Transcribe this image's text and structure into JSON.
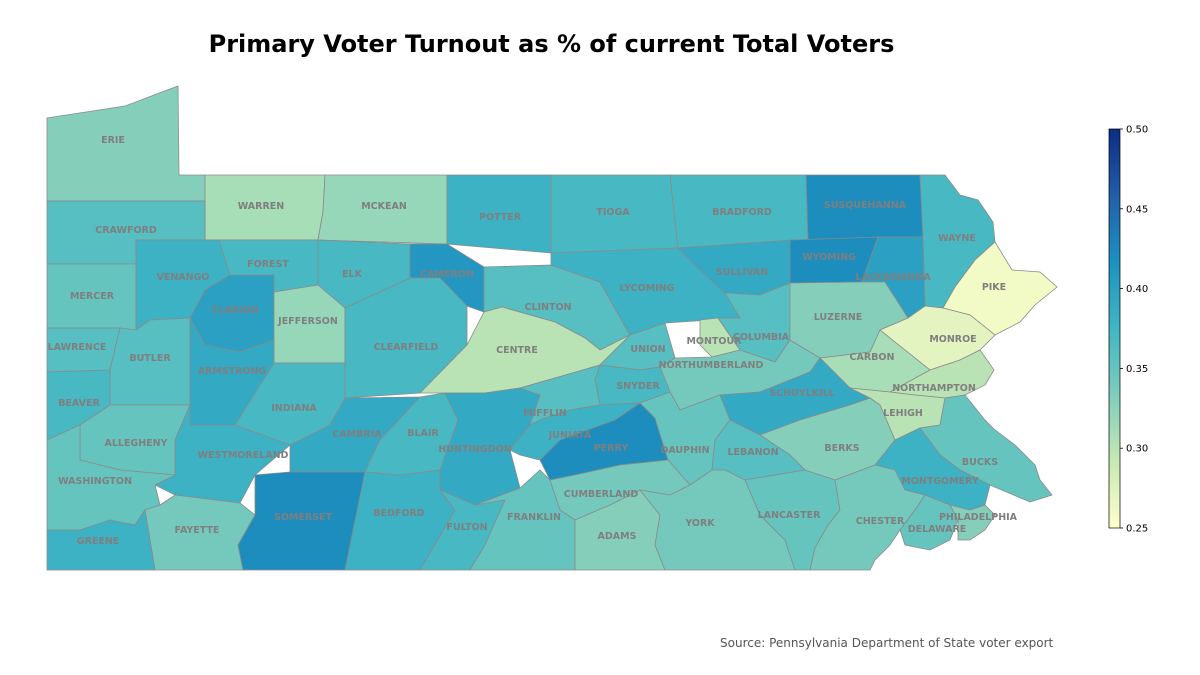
{
  "title": "Primary Voter Turnout as % of current Total Voters",
  "source": "Source: Pennsylvania Department of State voter export",
  "colorbar": {
    "min": 0.25,
    "max": 0.5,
    "ticks": [
      "0.25",
      "0.30",
      "0.35",
      "0.40",
      "0.45",
      "0.50"
    ],
    "colors": [
      "#ffffcc",
      "#c7e9b4",
      "#7fcdbb",
      "#41b6c4",
      "#1d91c0",
      "#225ea8",
      "#0c2c84"
    ]
  },
  "counties": [
    {
      "name": "ERIE",
      "value": 0.33
    },
    {
      "name": "WARREN",
      "value": 0.31
    },
    {
      "name": "MCKEAN",
      "value": 0.32
    },
    {
      "name": "POTTER",
      "value": 0.38
    },
    {
      "name": "TIOGA",
      "value": 0.37
    },
    {
      "name": "BRADFORD",
      "value": 0.37
    },
    {
      "name": "SUSQUEHANNA",
      "value": 0.42
    },
    {
      "name": "WAYNE",
      "value": 0.37
    },
    {
      "name": "CRAWFORD",
      "value": 0.36
    },
    {
      "name": "FOREST",
      "value": 0.37
    },
    {
      "name": "ELK",
      "value": 0.37
    },
    {
      "name": "CAMERON",
      "value": 0.41
    },
    {
      "name": "CLINTON",
      "value": 0.36
    },
    {
      "name": "LYCOMING",
      "value": 0.38
    },
    {
      "name": "SULLIVAN",
      "value": 0.39
    },
    {
      "name": "WYOMING",
      "value": 0.42
    },
    {
      "name": "LACKAWANNA",
      "value": 0.4
    },
    {
      "name": "PIKE",
      "value": 0.26
    },
    {
      "name": "MERCER",
      "value": 0.35
    },
    {
      "name": "VENANGO",
      "value": 0.38
    },
    {
      "name": "CLARION",
      "value": 0.4
    },
    {
      "name": "JEFFERSON",
      "value": 0.32
    },
    {
      "name": "CLEARFIELD",
      "value": 0.37
    },
    {
      "name": "CENTRE",
      "value": 0.3
    },
    {
      "name": "UNION",
      "value": 0.36
    },
    {
      "name": "MONTOUR",
      "value": 0.3
    },
    {
      "name": "COLUMBIA",
      "value": 0.36
    },
    {
      "name": "LUZERNE",
      "value": 0.33
    },
    {
      "name": "MONROE",
      "value": 0.27
    },
    {
      "name": "LAWRENCE",
      "value": 0.36
    },
    {
      "name": "BUTLER",
      "value": 0.36
    },
    {
      "name": "ARMSTRONG",
      "value": 0.39
    },
    {
      "name": "INDIANA",
      "value": 0.37
    },
    {
      "name": "CARBON",
      "value": 0.31
    },
    {
      "name": "NORTHUMBERLAND",
      "value": 0.34
    },
    {
      "name": "SNYDER",
      "value": 0.37
    },
    {
      "name": "NORTHAMPTON",
      "value": 0.3
    },
    {
      "name": "BEAVER",
      "value": 0.37
    },
    {
      "name": "ALLEGHENY",
      "value": 0.35
    },
    {
      "name": "WESTMORELAND",
      "value": 0.38
    },
    {
      "name": "CAMBRIA",
      "value": 0.39
    },
    {
      "name": "BLAIR",
      "value": 0.37
    },
    {
      "name": "HUNTINGDON",
      "value": 0.39
    },
    {
      "name": "MIFFLIN",
      "value": 0.36
    },
    {
      "name": "JUNIATA",
      "value": 0.38
    },
    {
      "name": "PERRY",
      "value": 0.42
    },
    {
      "name": "DAUPHIN",
      "value": 0.35
    },
    {
      "name": "SCHUYLKILL",
      "value": 0.39
    },
    {
      "name": "LEHIGH",
      "value": 0.3
    },
    {
      "name": "BERKS",
      "value": 0.33
    },
    {
      "name": "LEBANON",
      "value": 0.36
    },
    {
      "name": "BUCKS",
      "value": 0.35
    },
    {
      "name": "MONTGOMERY",
      "value": 0.38
    },
    {
      "name": "WASHINGTON",
      "value": 0.35
    },
    {
      "name": "FAYETTE",
      "value": 0.34
    },
    {
      "name": "SOMERSET",
      "value": 0.42
    },
    {
      "name": "BEDFORD",
      "value": 0.38
    },
    {
      "name": "FULTON",
      "value": 0.37
    },
    {
      "name": "FRANKLIN",
      "value": 0.35
    },
    {
      "name": "CUMBERLAND",
      "value": 0.34
    },
    {
      "name": "ADAMS",
      "value": 0.33
    },
    {
      "name": "YORK",
      "value": 0.34
    },
    {
      "name": "LANCASTER",
      "value": 0.35
    },
    {
      "name": "CHESTER",
      "value": 0.34
    },
    {
      "name": "DELAWARE",
      "value": 0.35
    },
    {
      "name": "PHILADELPHIA",
      "value": 0.33
    },
    {
      "name": "GREENE",
      "value": 0.38
    }
  ]
}
